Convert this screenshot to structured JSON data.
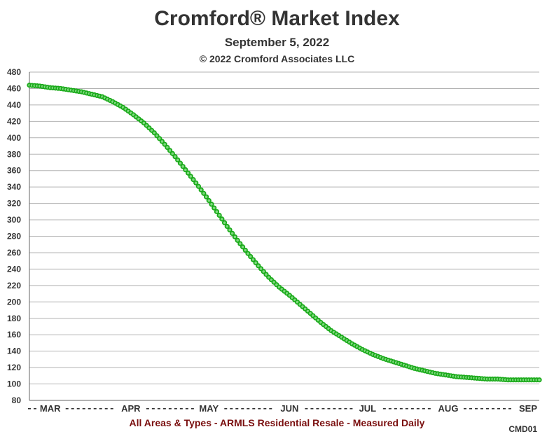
{
  "chart_data": {
    "type": "scatter",
    "title": "Cromford® Market Index",
    "subtitle": "September 5, 2022",
    "copyright": "© 2022 Cromford Associates LLC",
    "footer": "All Areas & Types - ARMLS Residential Resale - Measured Daily",
    "code": "CMD01",
    "xlabel": "",
    "ylabel": "",
    "ylim": [
      80,
      480
    ],
    "yticks": [
      80,
      100,
      120,
      140,
      160,
      180,
      200,
      220,
      240,
      260,
      280,
      300,
      320,
      340,
      360,
      380,
      400,
      420,
      440,
      460,
      480
    ],
    "xlim": [
      "2022-02-21",
      "2022-09-05"
    ],
    "x_tick_labels": [
      {
        "label": "MAR",
        "date": "2022-03-01"
      },
      {
        "label": "APR",
        "date": "2022-04-01"
      },
      {
        "label": "MAY",
        "date": "2022-05-01"
      },
      {
        "label": "JUN",
        "date": "2022-06-01"
      },
      {
        "label": "JUL",
        "date": "2022-07-01"
      },
      {
        "label": "AUG",
        "date": "2022-08-01"
      },
      {
        "label": "SEP",
        "date": "2022-09-01"
      }
    ],
    "grid": true,
    "series": [
      {
        "color": "#1aaa1a",
        "points": [
          [
            "2022-02-21",
            464
          ],
          [
            "2022-02-25",
            463
          ],
          [
            "2022-03-01",
            461
          ],
          [
            "2022-03-05",
            460
          ],
          [
            "2022-03-09",
            458
          ],
          [
            "2022-03-13",
            456
          ],
          [
            "2022-03-17",
            453
          ],
          [
            "2022-03-21",
            450
          ],
          [
            "2022-03-25",
            444
          ],
          [
            "2022-03-29",
            437
          ],
          [
            "2022-04-02",
            428
          ],
          [
            "2022-04-06",
            418
          ],
          [
            "2022-04-10",
            406
          ],
          [
            "2022-04-14",
            392
          ],
          [
            "2022-04-18",
            377
          ],
          [
            "2022-04-22",
            361
          ],
          [
            "2022-04-26",
            345
          ],
          [
            "2022-04-30",
            328
          ],
          [
            "2022-05-04",
            310
          ],
          [
            "2022-05-08",
            292
          ],
          [
            "2022-05-12",
            275
          ],
          [
            "2022-05-16",
            259
          ],
          [
            "2022-05-20",
            244
          ],
          [
            "2022-05-24",
            230
          ],
          [
            "2022-05-28",
            218
          ],
          [
            "2022-06-01",
            208
          ],
          [
            "2022-06-05",
            197
          ],
          [
            "2022-06-09",
            186
          ],
          [
            "2022-06-13",
            175
          ],
          [
            "2022-06-17",
            165
          ],
          [
            "2022-06-21",
            157
          ],
          [
            "2022-06-25",
            149
          ],
          [
            "2022-06-29",
            142
          ],
          [
            "2022-07-03",
            136
          ],
          [
            "2022-07-07",
            131
          ],
          [
            "2022-07-11",
            127
          ],
          [
            "2022-07-15",
            123
          ],
          [
            "2022-07-19",
            119
          ],
          [
            "2022-07-23",
            116
          ],
          [
            "2022-07-27",
            113
          ],
          [
            "2022-07-31",
            111
          ],
          [
            "2022-08-04",
            109
          ],
          [
            "2022-08-08",
            108
          ],
          [
            "2022-08-12",
            107
          ],
          [
            "2022-08-16",
            106
          ],
          [
            "2022-08-20",
            106
          ],
          [
            "2022-08-24",
            105
          ],
          [
            "2022-08-28",
            105
          ],
          [
            "2022-09-01",
            105
          ],
          [
            "2022-09-05",
            105
          ]
        ]
      }
    ]
  }
}
